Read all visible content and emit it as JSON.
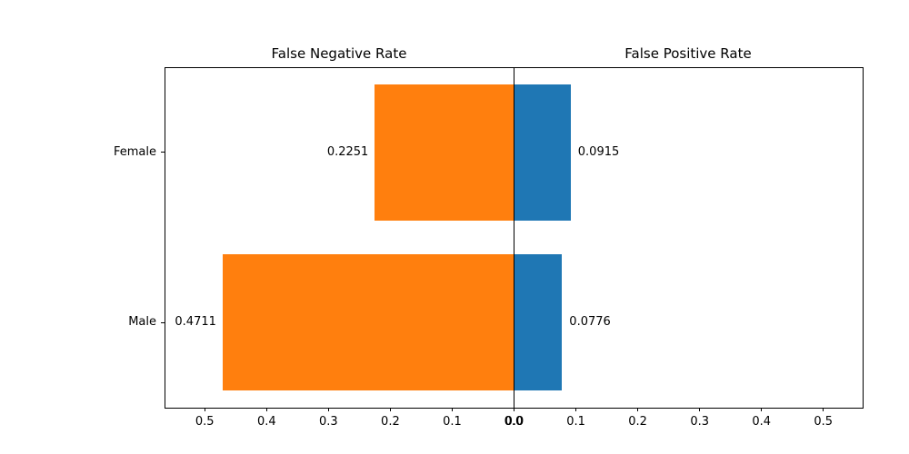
{
  "chart_data": {
    "type": "bar",
    "variant": "diverging-horizontal",
    "titles": {
      "left": "False Negative Rate",
      "right": "False Positive Rate"
    },
    "categories": [
      "Female",
      "Male"
    ],
    "series": [
      {
        "name": "False Negative Rate",
        "short": "fnr",
        "side": "left",
        "color": "#ff7f0e",
        "values": [
          0.2251,
          0.4711
        ],
        "labels": [
          "0.2251",
          "0.4711"
        ]
      },
      {
        "name": "False Positive Rate",
        "short": "fpr",
        "side": "right",
        "color": "#1f77b4",
        "values": [
          0.0915,
          0.0776
        ],
        "labels": [
          "0.0915",
          "0.0776"
        ]
      }
    ],
    "x_tick_labels": [
      "0.5",
      "0.4",
      "0.3",
      "0.2",
      "0.1",
      "0.0"
    ],
    "x_tick_values": [
      0.5,
      0.4,
      0.3,
      0.2,
      0.1,
      0.0
    ],
    "xlim_each_side": 0.565,
    "bar_height_fraction": 0.8,
    "axis_color": "#000000",
    "background_color": "#ffffff",
    "grid": false,
    "legend": false
  }
}
